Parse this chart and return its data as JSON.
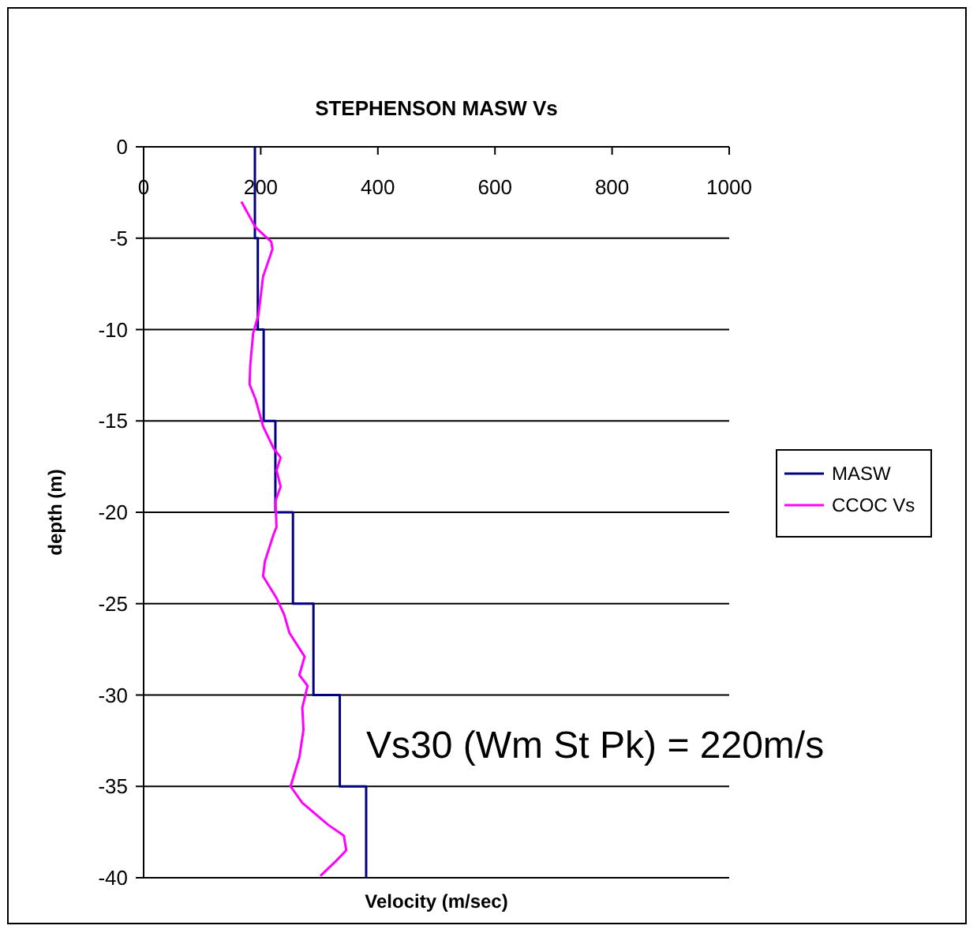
{
  "chart_data": {
    "type": "line",
    "title": "STEPHENSON MASW Vs",
    "xlabel": "Velocity (m/sec)",
    "ylabel": "depth (m)",
    "xlim": [
      0,
      1000
    ],
    "xticks": [
      0,
      200,
      400,
      600,
      800,
      1000
    ],
    "ylim": [
      -40,
      0
    ],
    "yticks": [
      0,
      -5,
      -10,
      -15,
      -20,
      -25,
      -30,
      -35,
      -40
    ],
    "grid": "y",
    "legend": "right",
    "marker": "none",
    "series": [
      {
        "name": "MASW",
        "color": "#000080",
        "x": [
          190,
          190,
          195,
          195,
          205,
          205,
          225,
          225,
          255,
          255,
          290,
          290,
          335,
          335,
          380,
          380
        ],
        "values": [
          0,
          -5,
          -5,
          -10,
          -10,
          -15,
          -15,
          -20,
          -20,
          -25,
          -25,
          -30,
          -30,
          -35,
          -35,
          -40
        ]
      },
      {
        "name": "CCOC Vs",
        "color": "#ff00ff",
        "x": [
          167,
          191,
          218,
          220,
          204,
          196,
          187,
          182,
          181,
          191,
          204,
          222,
          234,
          227,
          234,
          225,
          227,
          222,
          207,
          204,
          227,
          240,
          249,
          275,
          266,
          280,
          271,
          273,
          266,
          251,
          271,
          315,
          342,
          346,
          328,
          302
        ],
        "values": [
          -3.0,
          -4.4,
          -5.2,
          -5.6,
          -7.1,
          -9.2,
          -10.2,
          -12.0,
          -13.0,
          -13.8,
          -15.3,
          -16.5,
          -17.0,
          -17.7,
          -18.6,
          -19.4,
          -20.8,
          -21.2,
          -22.7,
          -23.5,
          -24.7,
          -25.6,
          -26.6,
          -27.9,
          -28.9,
          -29.5,
          -30.7,
          -31.9,
          -33.4,
          -35.0,
          -35.9,
          -37.1,
          -37.7,
          -38.5,
          -39.1,
          -39.9
        ]
      }
    ],
    "annotations": [
      "Vs30 (Wm St Pk) = 220m/s"
    ]
  }
}
